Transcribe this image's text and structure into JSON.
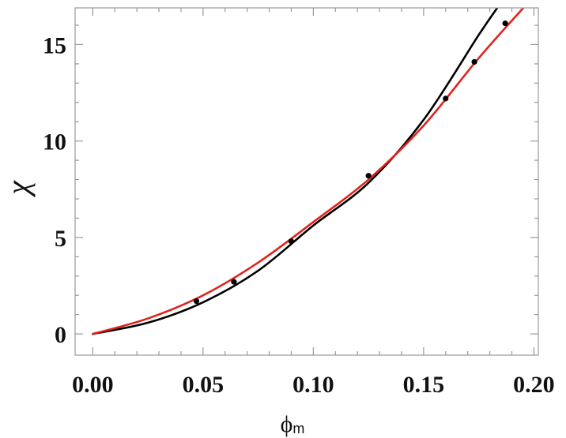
{
  "chart_data": {
    "type": "scatter",
    "xlabel": "ϕ",
    "xlabel_sub": "m",
    "ylabel": "χ",
    "xlim": [
      -0.008,
      0.202
    ],
    "ylim": [
      -1.1,
      16.9
    ],
    "xticks": [
      0.0,
      0.05,
      0.1,
      0.15,
      0.2
    ],
    "xtick_labels": [
      "0.00",
      "0.05",
      "0.10",
      "0.15",
      "0.20"
    ],
    "yticks": [
      0,
      5,
      10,
      15
    ],
    "ytick_labels": [
      "0",
      "5",
      "10",
      "15"
    ],
    "grid": false,
    "points": {
      "color": "#000000",
      "x": [
        0.047,
        0.064,
        0.09,
        0.125,
        0.16,
        0.173,
        0.187
      ],
      "y": [
        1.7,
        2.7,
        4.8,
        8.2,
        12.2,
        14.1,
        16.1
      ]
    },
    "series": [
      {
        "color": "#000000",
        "x": [
          0.0,
          0.025,
          0.05,
          0.075,
          0.1,
          0.125,
          0.15,
          0.175,
          0.184
        ],
        "y": [
          0.0,
          0.58,
          1.64,
          3.28,
          5.62,
          7.83,
          11.1,
          15.5,
          17.0
        ]
      },
      {
        "color": "#e0231c",
        "x": [
          0.0,
          0.025,
          0.05,
          0.075,
          0.1,
          0.125,
          0.15,
          0.175,
          0.196
        ],
        "y": [
          0.0,
          0.8,
          2.0,
          3.7,
          5.8,
          8.0,
          10.8,
          14.3,
          17.0
        ]
      }
    ]
  }
}
